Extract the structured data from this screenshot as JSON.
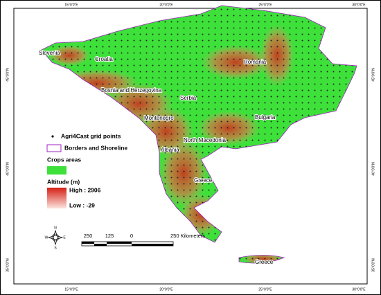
{
  "coordinates": {
    "longitude": [
      "15°0'0\"E",
      "20°0'0\"E",
      "25°0'0\"E",
      "30°0'0\"E"
    ],
    "latitude": [
      "45°0'0\"N",
      "40°0'0\"N",
      "35°0'0\"N"
    ]
  },
  "places": [
    "Slovenia",
    "Croatia",
    "Bosnia and Herzegovina",
    "Serbia",
    "Romania",
    "Montenegro",
    "Bulgaria",
    "North Macedonia",
    "Albania",
    "Greece",
    "Greece"
  ],
  "legend": {
    "grid_points": "Agri4Cast grid points",
    "borders": "Borders and Shoreline",
    "crops": "Crops areas",
    "altitude_title": "Altitude (m)",
    "altitude_high": "High : 2906",
    "altitude_low": "Low : -29"
  },
  "compass": [
    "N",
    "E",
    "S",
    "W"
  ],
  "scale_bar": [
    "250",
    "125",
    "0",
    "250 Kilometers"
  ]
}
